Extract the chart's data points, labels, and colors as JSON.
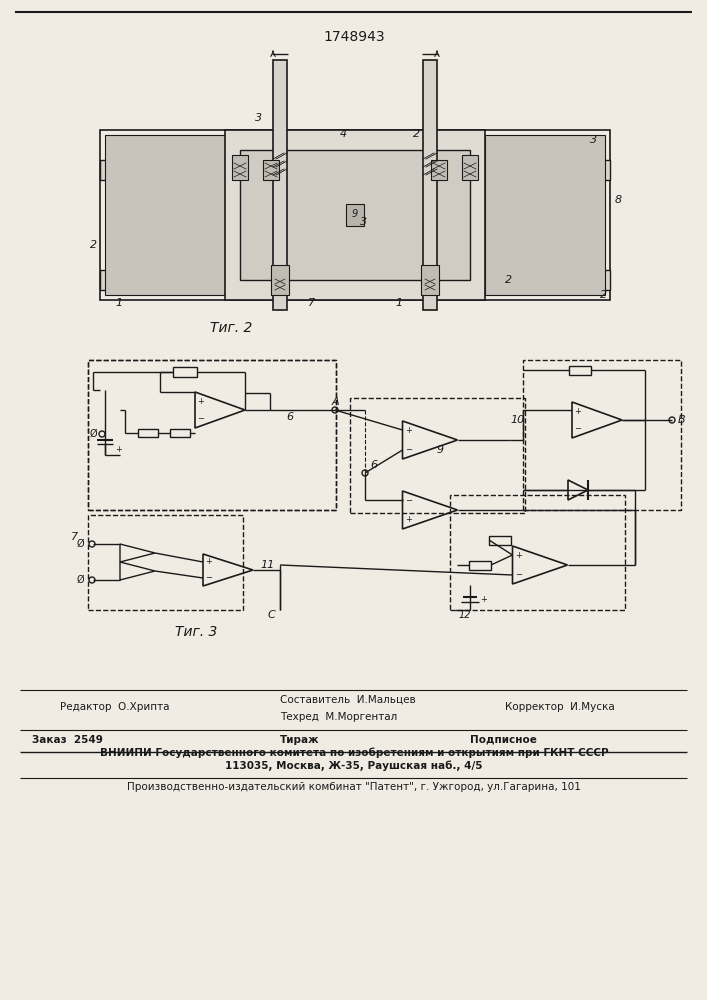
{
  "title": "1748943",
  "fig2_caption": "Τиг. 2",
  "fig3_caption": "Τиг. 3",
  "footer_line1_left": "Редактор  О.Хрипта",
  "footer_line1_center1": "Составитель  И.Мальцев",
  "footer_line1_center2": "Техред  М.Моргентал",
  "footer_line1_right": "Корректор  И.Муска",
  "footer_line2_left": "Заказ  2549",
  "footer_line2_center": "Тираж",
  "footer_line2_right": "Подписное",
  "footer_line3": "ВНИИПИ Государственного комитета по изобретениям и открытиям при ГКНТ СССР",
  "footer_line4": "113035, Москва, Ж-35, Раушская наб., 4/5",
  "footer_line5": "Производственно-издательский комбинат \"Патент\", г. Ужгород, ул.Гагарина, 101",
  "bg_color": "#f0ece4",
  "line_color": "#1a1a1a"
}
